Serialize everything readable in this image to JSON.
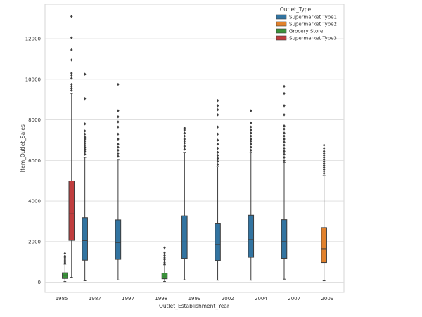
{
  "chart_data": {
    "type": "box",
    "title": "",
    "xlabel": "Outlet_Establishment_Year",
    "ylabel": "Item_Outlet_Sales",
    "categories": [
      "1985",
      "1987",
      "1997",
      "1998",
      "1999",
      "2002",
      "2004",
      "2007",
      "2009"
    ],
    "yticks": [
      0,
      2000,
      4000,
      6000,
      8000,
      10000,
      12000
    ],
    "ytick_labels": [
      "0",
      "2000",
      "4000",
      "6000",
      "8000",
      "10000",
      "12000"
    ],
    "ylim": [
      -500,
      13700
    ],
    "grid": true,
    "legend": {
      "title": "Outlet_Type",
      "placement": "top-right",
      "entries": [
        "Supermarket Type1",
        "Supermarket Type2",
        "Grocery Store",
        "Supermarket Type3"
      ]
    },
    "colors": {
      "Supermarket Type1": "#3274a1",
      "Supermarket Type2": "#e1812c",
      "Grocery Store": "#3a923a",
      "Supermarket Type3": "#c03d3e"
    },
    "series": [
      {
        "name": "Supermarket Type1",
        "boxes": [
          {
            "category": "1987",
            "min": 73,
            "q1": 1085,
            "median": 2050,
            "q3": 3180,
            "max": 6150,
            "outliers": [
              6300,
              6450,
              6550,
              6650,
              6750,
              6850,
              6950,
              7050,
              7150,
              7300,
              7450,
              7800,
              9050,
              10250
            ]
          },
          {
            "category": "1997",
            "min": 110,
            "q1": 1125,
            "median": 1950,
            "q3": 3070,
            "max": 6050,
            "outliers": [
              6200,
              6350,
              6500,
              6650,
              6800,
              7050,
              7300,
              7650,
              7900,
              8150,
              8450,
              9750
            ]
          },
          {
            "category": "1999",
            "min": 115,
            "q1": 1175,
            "median": 1980,
            "q3": 3270,
            "max": 6400,
            "outliers": [
              6550,
              6700,
              6850,
              6950,
              7050,
              7200,
              7350,
              7500,
              7600
            ]
          },
          {
            "category": "2002",
            "min": 100,
            "q1": 1070,
            "median": 1860,
            "q3": 2910,
            "max": 5700,
            "outliers": [
              5800,
              5950,
              6100,
              6250,
              6400,
              6600,
              6800,
              7000,
              7300,
              7650,
              8250,
              8500,
              8700,
              8950
            ]
          },
          {
            "category": "2004",
            "min": 100,
            "q1": 1230,
            "median": 2100,
            "q3": 3300,
            "max": 6400,
            "outliers": [
              6500,
              6650,
              6800,
              6950,
              7050,
              7200,
              7350,
              7500,
              7650,
              7850,
              8450
            ]
          },
          {
            "category": "2007",
            "min": 150,
            "q1": 1180,
            "median": 2000,
            "q3": 3080,
            "max": 5900,
            "outliers": [
              6000,
              6150,
              6300,
              6450,
              6600,
              6750,
              6900,
              7050,
              7200,
              7350,
              7550,
              7700,
              8250,
              8700,
              9300,
              9650
            ]
          }
        ]
      },
      {
        "name": "Supermarket Type2",
        "boxes": [
          {
            "category": "2009",
            "min": 70,
            "q1": 970,
            "median": 1650,
            "q3": 2690,
            "max": 5250,
            "outliers": [
              5350,
              5450,
              5550,
              5650,
              5750,
              5850,
              5950,
              6050,
              6150,
              6250,
              6350,
              6450,
              6600,
              6750
            ]
          }
        ]
      },
      {
        "name": "Grocery Store",
        "boxes": [
          {
            "category": "1985",
            "min": 33,
            "q1": 185,
            "median": 320,
            "q3": 465,
            "max": 890,
            "outliers": [
              930,
              990,
              1060,
              1130,
              1200,
              1290,
              1420
            ]
          },
          {
            "category": "1998",
            "min": 35,
            "q1": 170,
            "median": 310,
            "q3": 450,
            "max": 860,
            "outliers": [
              900,
              960,
              1040,
              1120,
              1200,
              1320,
              1450,
              1700
            ]
          }
        ]
      },
      {
        "name": "Supermarket Type3",
        "boxes": [
          {
            "category": "1985",
            "min": 240,
            "q1": 2060,
            "median": 3370,
            "q3": 4990,
            "max": 9300,
            "outliers": [
              9450,
              9550,
              9650,
              9750,
              10050,
              10200,
              10300,
              10950,
              11450,
              12050,
              13100
            ]
          }
        ]
      }
    ]
  }
}
